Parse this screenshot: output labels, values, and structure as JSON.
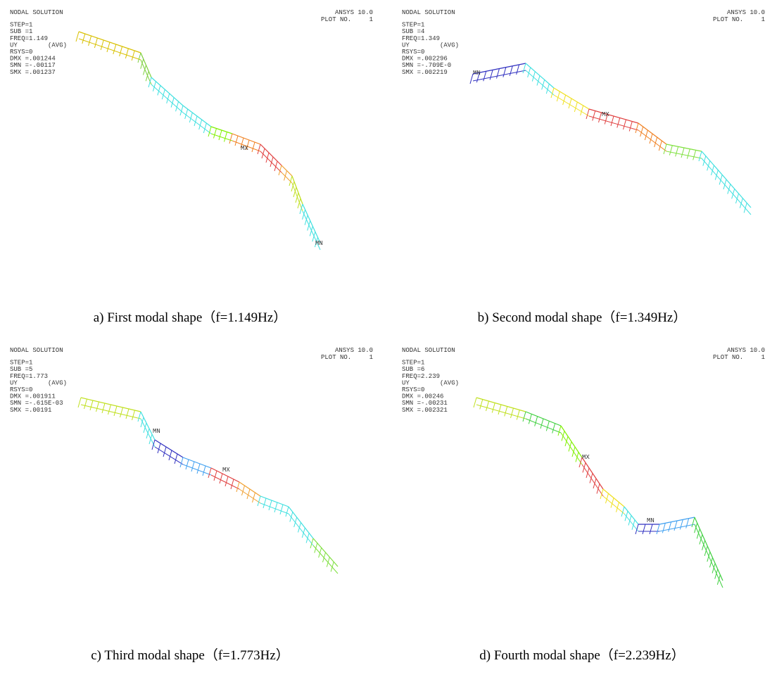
{
  "panels": [
    {
      "header": [
        "NODAL SOLUTION",
        "STEP=1",
        "SUB =1",
        "FREQ=1.149",
        "UY",
        "RSYS=0",
        "DMX =.001244",
        "SMN =-.00117",
        "SMX =.001237"
      ],
      "avg": "(AVG)",
      "version": "ANSYS 10.0",
      "plot_label": "PLOT NO.",
      "plot_number": "1",
      "mn": "MN",
      "mx": "MX",
      "caption": "a) First modal shape（f=1.149Hz）"
    },
    {
      "header": [
        "NODAL SOLUTION",
        "STEP=1",
        "SUB =4",
        "FREQ=1.349",
        "UY",
        "RSYS=0",
        "DMX =.002296",
        "SMN =-.709E-0",
        "SMX =.002219"
      ],
      "avg": "(AVG)",
      "version": "ANSYS 10.0",
      "plot_label": "PLOT NO.",
      "plot_number": "1",
      "mn": "MN",
      "mx": "MX",
      "caption": "b) Second modal shape（f=1.349Hz）"
    },
    {
      "header": [
        "NODAL SOLUTION",
        "STEP=1",
        "SUB =5",
        "FREQ=1.773",
        "UY",
        "RSYS=0",
        "DMX =.001911",
        "SMN =-.615E-03",
        "SMX =.00191"
      ],
      "avg": "(AVG)",
      "version": "ANSYS 10.0",
      "plot_label": "PLOT NO.",
      "plot_number": "1",
      "mn": "MN",
      "mx": "MX",
      "caption": "c) Third modal shape（f=1.773Hz）"
    },
    {
      "header": [
        "NODAL SOLUTION",
        "STEP=1",
        "SUB =6",
        "FREQ=2.239",
        "UY",
        "RSYS=0",
        "DMX =.00246",
        "SMN =-.00231",
        "SMX =.002321"
      ],
      "avg": "(AVG)",
      "version": "ANSYS 10.0",
      "plot_label": "PLOT NO.",
      "plot_number": "1",
      "mn": "MN",
      "mx": "MX",
      "caption": "d) Fourth modal shape（f=2.239Hz）"
    }
  ]
}
